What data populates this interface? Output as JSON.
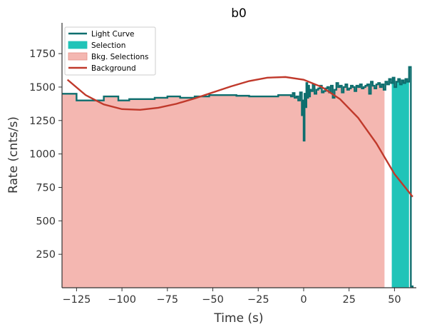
{
  "chart_data": {
    "type": "line",
    "title": "b0",
    "xlabel": "Time (s)",
    "ylabel": "Rate (cnts/s)",
    "xlim": [
      -133,
      62
    ],
    "ylim": [
      0,
      1980
    ],
    "xticks": [
      -125,
      -100,
      -75,
      -50,
      -25,
      0,
      25,
      50
    ],
    "yticks": [
      250,
      500,
      750,
      1000,
      1250,
      1500,
      1750
    ],
    "xtick_labels": [
      "−125",
      "−100",
      "−75",
      "−50",
      "−25",
      "0",
      "25",
      "50"
    ],
    "ytick_labels": [
      "250",
      "500",
      "750",
      "1000",
      "1250",
      "1500",
      "1750"
    ],
    "grid": false,
    "legend_position": "top-left",
    "legend": [
      {
        "label": "Light Curve",
        "kind": "line",
        "color": "#0e6e6e"
      },
      {
        "label": "Selection",
        "kind": "patch",
        "color": "#20c4b8"
      },
      {
        "label": "Bkg. Selections",
        "kind": "patch",
        "color": "#f4b7b1"
      },
      {
        "label": "Background",
        "kind": "line",
        "color": "#c0392b"
      }
    ],
    "series": [
      {
        "name": "Light Curve",
        "style": "step",
        "color": "#0e6e6e",
        "x": [
          -133,
          -125,
          -117,
          -110,
          -102,
          -96,
          -88,
          -82,
          -75,
          -68,
          -60,
          -52,
          -44,
          -37,
          -30,
          -22,
          -14,
          -8,
          -7,
          -6,
          -5,
          -4,
          -3,
          -2,
          -1,
          -0.5,
          0,
          0.5,
          1,
          1.5,
          2,
          2.5,
          3,
          3.5,
          4,
          5,
          6,
          7,
          8,
          9,
          10,
          11,
          12,
          13,
          14,
          15,
          16,
          17,
          18,
          19,
          20,
          21,
          22,
          23,
          24,
          25,
          26,
          27,
          28,
          29,
          30,
          31,
          32,
          33,
          34,
          35,
          36,
          37,
          38,
          39,
          40,
          41,
          42,
          43,
          44,
          45,
          46,
          47,
          48,
          49,
          50,
          51,
          52,
          53,
          54,
          55,
          56,
          57,
          58,
          59,
          60
        ],
        "values": [
          1450,
          1400,
          1400,
          1430,
          1400,
          1410,
          1410,
          1420,
          1430,
          1420,
          1430,
          1440,
          1440,
          1435,
          1430,
          1430,
          1440,
          1440,
          1430,
          1455,
          1420,
          1430,
          1400,
          1460,
          1290,
          1400,
          1100,
          1450,
          1350,
          1530,
          1420,
          1510,
          1430,
          1480,
          1470,
          1520,
          1450,
          1480,
          1490,
          1510,
          1460,
          1470,
          1490,
          1500,
          1460,
          1510,
          1420,
          1480,
          1530,
          1500,
          1510,
          1460,
          1500,
          1520,
          1480,
          1490,
          1510,
          1500,
          1470,
          1510,
          1500,
          1520,
          1490,
          1500,
          1510,
          1520,
          1450,
          1540,
          1510,
          1490,
          1520,
          1530,
          1500,
          1520,
          1480,
          1540,
          1520,
          1560,
          1530,
          1570,
          1500,
          1540,
          1560,
          1520,
          1550,
          1530,
          1560,
          1540,
          1650,
          10,
          0
        ]
      },
      {
        "name": "Background",
        "style": "line",
        "color": "#c0392b",
        "x": [
          -130,
          -120,
          -110,
          -100,
          -90,
          -80,
          -70,
          -60,
          -50,
          -40,
          -30,
          -20,
          -10,
          0,
          10,
          20,
          30,
          40,
          50,
          60
        ],
        "values": [
          1555,
          1440,
          1370,
          1335,
          1330,
          1345,
          1375,
          1415,
          1460,
          1505,
          1545,
          1570,
          1575,
          1555,
          1500,
          1410,
          1270,
          1080,
          850,
          680
        ]
      }
    ],
    "bkg_selection": {
      "x": [
        -133,
        44.5
      ],
      "color": "#f4b7b1"
    },
    "selection": {
      "x": [
        48.5,
        58
      ],
      "color": "#20c4b8"
    }
  }
}
